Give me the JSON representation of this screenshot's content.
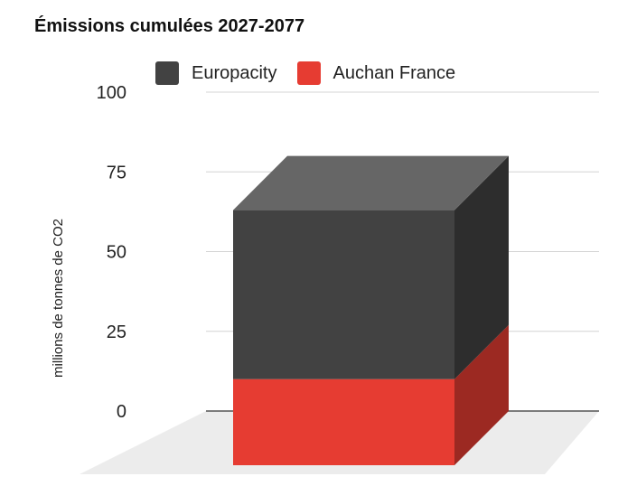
{
  "chart_data": {
    "type": "bar",
    "title": "Émissions cumulées 2027-2077",
    "ylabel": "millions de tonnes de CO2",
    "ylim": [
      0,
      100
    ],
    "yticks": [
      "0",
      "25",
      "50",
      "75",
      "100"
    ],
    "stacked": true,
    "three_d": true,
    "categories": [
      ""
    ],
    "series": [
      {
        "name": "Auchan France",
        "values": [
          27
        ],
        "color": "#e63c32"
      },
      {
        "name": "Europacity",
        "values": [
          53
        ],
        "color": "#424242"
      }
    ],
    "legend_position": "top",
    "grid": true
  }
}
